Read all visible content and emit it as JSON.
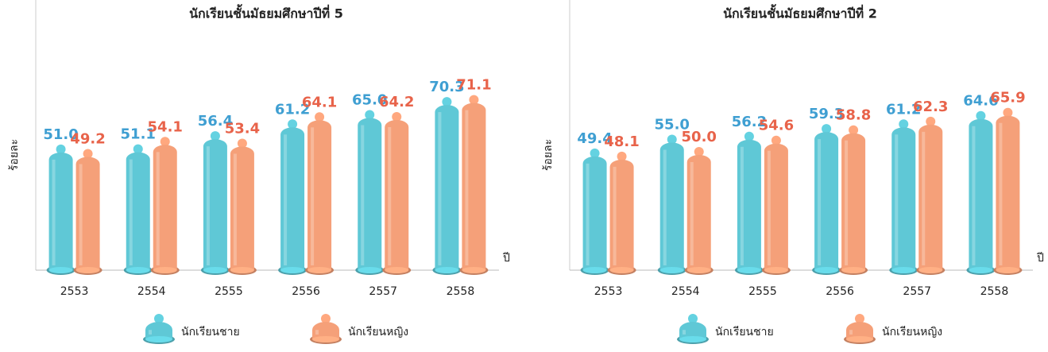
{
  "chart_data": [
    {
      "type": "bar",
      "title": "นักเรียนชั้นมัธยมศึกษาปีที่ 5",
      "y_label": "ร้อยละ",
      "x_label": "ปี",
      "categories": [
        "2553",
        "2554",
        "2555",
        "2556",
        "2557",
        "2558"
      ],
      "ylim": [
        0,
        100
      ],
      "series": [
        {
          "name": "นักเรียนชาย",
          "color": "#5fc8d6",
          "label_color": "#3f9fd2",
          "values": [
            51.0,
            51.1,
            56.4,
            61.2,
            65.0,
            70.3
          ],
          "value_labels": [
            "51.0",
            "51.1",
            "56.4",
            "61.2",
            "65.0",
            "70.3"
          ]
        },
        {
          "name": "นักเรียนหญิง",
          "color": "#f5a079",
          "label_color": "#e8634a",
          "values": [
            49.2,
            54.1,
            53.4,
            64.1,
            64.2,
            71.1
          ],
          "value_labels": [
            "49.2",
            "54.1",
            "53.4",
            "64.1",
            "64.2",
            "71.1"
          ]
        }
      ]
    },
    {
      "type": "bar",
      "title": "นักเรียนชั้นมัธยมศึกษาปีที่ 2",
      "y_label": "ร้อยละ",
      "x_label": "ปี",
      "categories": [
        "2553",
        "2554",
        "2555",
        "2556",
        "2557",
        "2558"
      ],
      "ylim": [
        0,
        100
      ],
      "series": [
        {
          "name": "นักเรียนชาย",
          "color": "#5fc8d6",
          "label_color": "#3f9fd2",
          "values": [
            49.4,
            55.0,
            56.2,
            59.3,
            61.2,
            64.6
          ],
          "value_labels": [
            "49.4",
            "55.0",
            "56.2",
            "59.3",
            "61.2",
            "64.6"
          ]
        },
        {
          "name": "นักเรียนหญิง",
          "color": "#f5a079",
          "label_color": "#e8634a",
          "values": [
            48.1,
            50.0,
            54.6,
            58.8,
            62.3,
            65.9
          ],
          "value_labels": [
            "48.1",
            "50.0",
            "54.6",
            "58.8",
            "62.3",
            "65.9"
          ]
        }
      ]
    }
  ]
}
